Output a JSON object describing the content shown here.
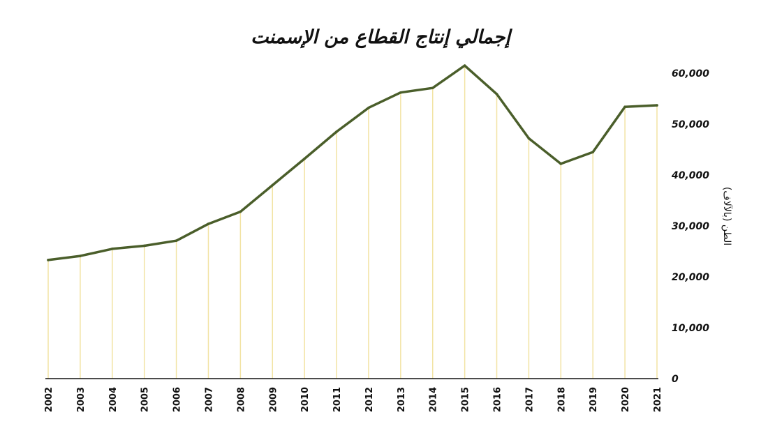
{
  "chart_data": {
    "type": "line",
    "title": "إجمالي إنتاج القطاع من الإسمنت",
    "xlabel": "",
    "ylabel": "الطن (بالآلاف)",
    "categories": [
      "2002",
      "2003",
      "2004",
      "2005",
      "2006",
      "2007",
      "2008",
      "2009",
      "2010",
      "2011",
      "2012",
      "2013",
      "2014",
      "2015",
      "2016",
      "2017",
      "2018",
      "2019",
      "2020",
      "2021"
    ],
    "series": [
      {
        "values": [
          23300,
          24100,
          25500,
          26100,
          27100,
          30400,
          32800,
          38000,
          43200,
          48500,
          53200,
          56200,
          57100,
          61500,
          55900,
          47200,
          42200,
          44500,
          53400,
          53700
        ]
      }
    ],
    "ylim": [
      0,
      60000
    ],
    "yticks": [
      "0",
      "10,000",
      "20,000",
      "30,000",
      "40,000",
      "50,000",
      "60,000"
    ],
    "ytick_values": [
      0,
      10000,
      20000,
      30000,
      40000,
      50000,
      60000
    ],
    "y_axis_side": "right",
    "grid": "vertical lines at each year",
    "colors": {
      "line": "#4a5e2a",
      "gridline": "#f2e3a3",
      "axis": "#111111"
    }
  }
}
